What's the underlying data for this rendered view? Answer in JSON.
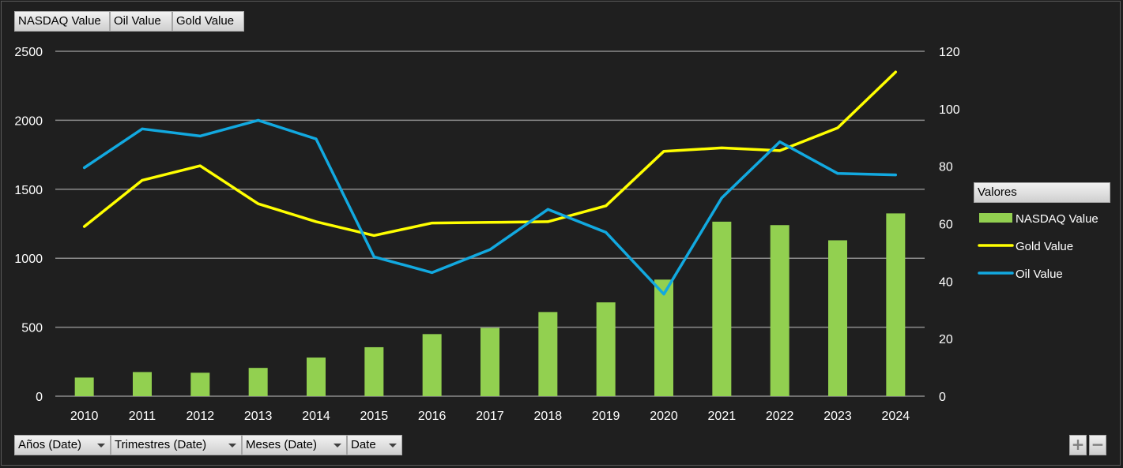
{
  "value_buttons": [
    "NASDAQ Value",
    "Oil Value",
    "Gold Value"
  ],
  "axis_buttons": [
    "Años (Date)",
    "Trimestres (Date)",
    "Meses (Date)",
    "Date"
  ],
  "zoom": {
    "plus": "+",
    "minus": "−"
  },
  "legend": {
    "title": "Valores",
    "items": [
      {
        "label": "NASDAQ Value",
        "color": "#92d050",
        "kind": "bar"
      },
      {
        "label": "Gold Value",
        "color": "#ffff00",
        "kind": "line"
      },
      {
        "label": "Oil Value",
        "color": "#12a9e0",
        "kind": "line"
      }
    ]
  },
  "chart_data": {
    "type": "bar",
    "categories": [
      "2010",
      "2011",
      "2012",
      "2013",
      "2014",
      "2015",
      "2016",
      "2017",
      "2018",
      "2019",
      "2020",
      "2021",
      "2022",
      "2023",
      "2024"
    ],
    "y_left": {
      "ylim": [
        0,
        2500
      ],
      "ticks": [
        0,
        500,
        1000,
        1500,
        2000,
        2500
      ]
    },
    "y_right": {
      "ylim": [
        0,
        120
      ],
      "ticks": [
        0,
        20,
        40,
        60,
        80,
        100,
        120
      ]
    },
    "grid": true,
    "legend_position": "right",
    "series": [
      {
        "name": "NASDAQ Value",
        "type": "bar",
        "axis": "left",
        "color": "#92d050",
        "values": [
          135,
          175,
          170,
          205,
          280,
          355,
          450,
          495,
          610,
          680,
          845,
          1265,
          1240,
          1130,
          1325
        ]
      },
      {
        "name": "Gold Value",
        "type": "line",
        "axis": "left",
        "color": "#ffff00",
        "values": [
          1230,
          1565,
          1670,
          1395,
          1265,
          1165,
          1255,
          1260,
          1265,
          1380,
          1775,
          1800,
          1780,
          1945,
          2350
        ]
      },
      {
        "name": "Oil Value",
        "type": "line",
        "axis": "right",
        "color": "#12a9e0",
        "values": [
          79.5,
          93,
          90.5,
          96,
          89.5,
          48.5,
          43,
          51,
          65,
          57,
          35.5,
          69,
          88.5,
          77.5,
          77
        ]
      }
    ]
  }
}
